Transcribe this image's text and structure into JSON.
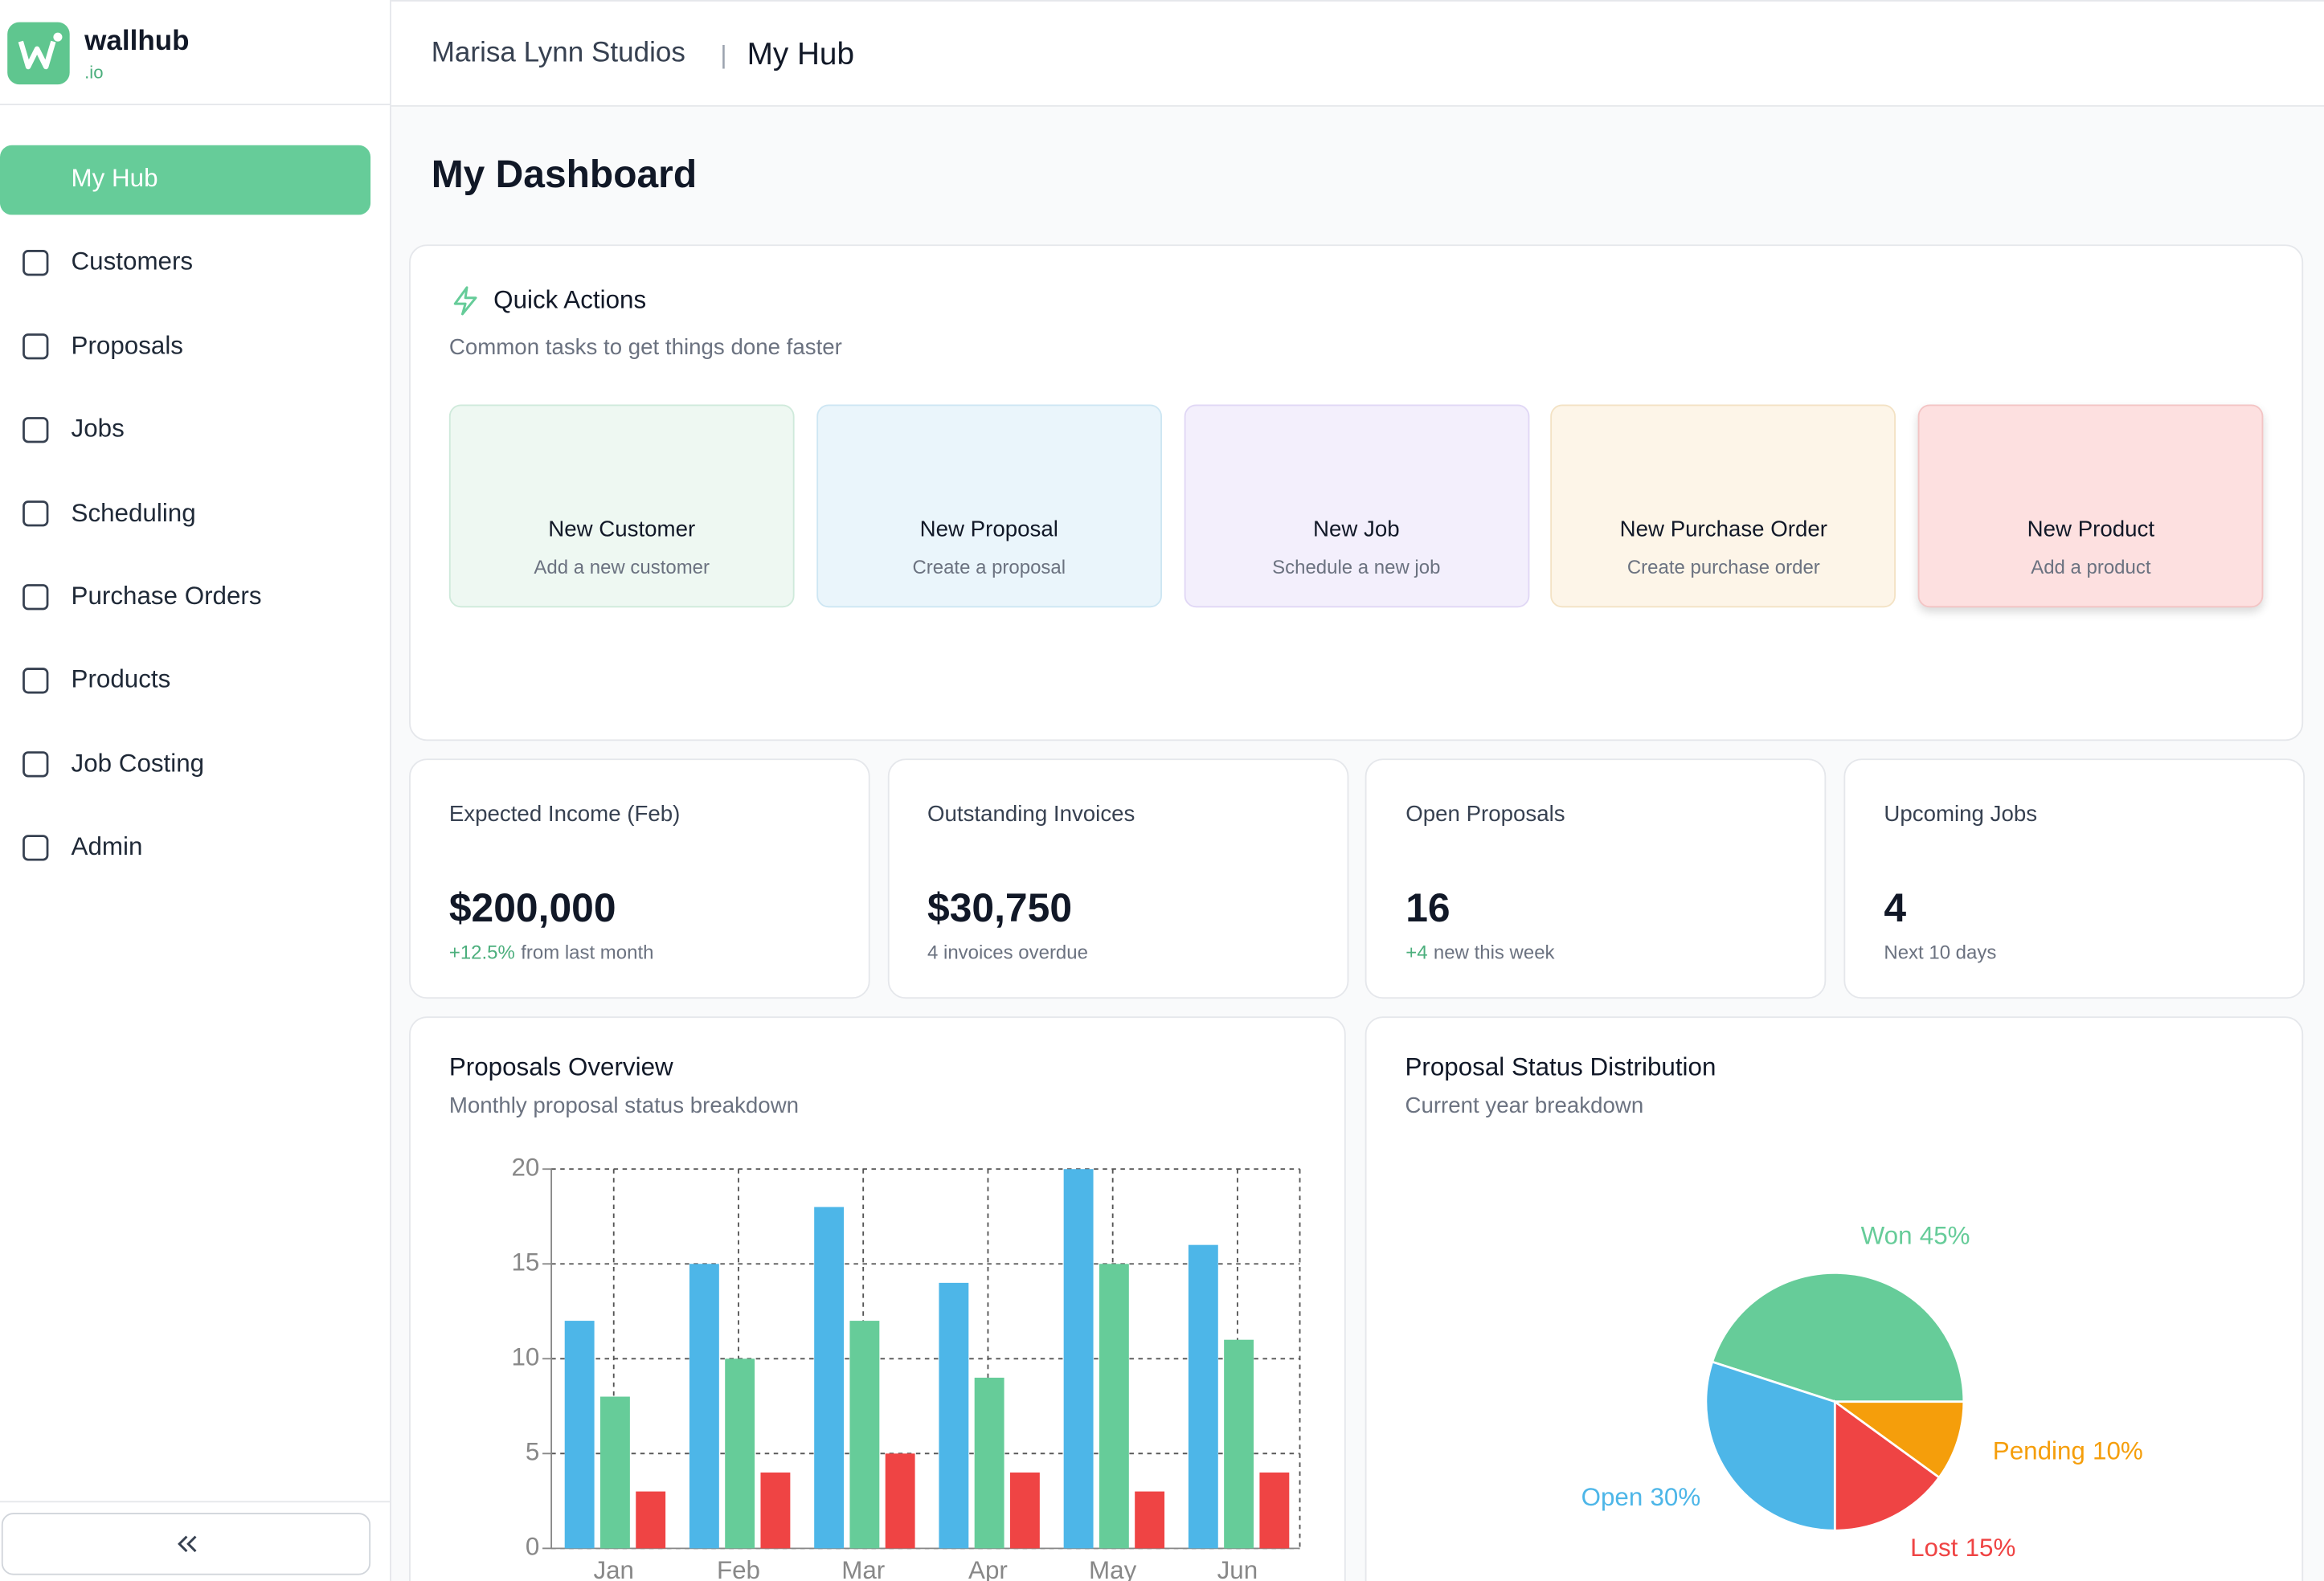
{
  "brand": {
    "name": "wallhub",
    "suffix": ".io"
  },
  "header": {
    "org": "Marisa Lynn Studios",
    "separator": "|",
    "page": "My Hub"
  },
  "nav": {
    "items": [
      "My Hub",
      "Customers",
      "Proposals",
      "Jobs",
      "Scheduling",
      "Purchase Orders",
      "Products",
      "Job Costing",
      "Admin"
    ]
  },
  "page_title": "My Dashboard",
  "quick_actions": {
    "title": "Quick Actions",
    "subtitle": "Common tasks to get things done faster",
    "items": [
      {
        "label": "New Customer",
        "desc": "Add a new customer"
      },
      {
        "label": "New Proposal",
        "desc": "Create a proposal"
      },
      {
        "label": "New Job",
        "desc": "Schedule a new job"
      },
      {
        "label": "New Purchase Order",
        "desc": "Create purchase order"
      },
      {
        "label": "New Product",
        "desc": "Add a product"
      }
    ]
  },
  "stats": [
    {
      "label": "Expected Income (Feb)",
      "value": "$200,000",
      "highlight": "+12.5%",
      "note": "from last month"
    },
    {
      "label": "Outstanding Invoices",
      "value": "$30,750",
      "note": "4 invoices overdue"
    },
    {
      "label": "Open Proposals",
      "value": "16",
      "highlight": "+4",
      "note": "new this week"
    },
    {
      "label": "Upcoming Jobs",
      "value": "4",
      "note": "Next 10 days"
    }
  ],
  "chart_data": [
    {
      "type": "bar",
      "title": "Proposals Overview",
      "subtitle": "Monthly proposal status breakdown",
      "categories": [
        "Jan",
        "Feb",
        "Mar",
        "Apr",
        "May",
        "Jun"
      ],
      "series": [
        {
          "color": "#4db6e8",
          "values": [
            12,
            15,
            18,
            14,
            20,
            16
          ]
        },
        {
          "color": "#66cc99",
          "values": [
            8,
            10,
            12,
            9,
            15,
            11
          ]
        },
        {
          "color": "#ef4444",
          "values": [
            3,
            4,
            5,
            4,
            3,
            4
          ]
        }
      ],
      "ylim": [
        0,
        20
      ],
      "yticks": [
        0,
        5,
        10,
        15,
        20
      ],
      "grid": true
    },
    {
      "type": "pie",
      "title": "Proposal Status Distribution",
      "subtitle": "Current year breakdown",
      "categories": [
        "Won",
        "Open",
        "Lost",
        "Pending"
      ],
      "values": [
        45,
        30,
        15,
        10
      ],
      "value_labels": [
        "45%",
        "30%",
        "15%",
        "10%"
      ],
      "colors": [
        "#66cc99",
        "#4db6e8",
        "#ef4444",
        "#f59e0b"
      ]
    }
  ]
}
